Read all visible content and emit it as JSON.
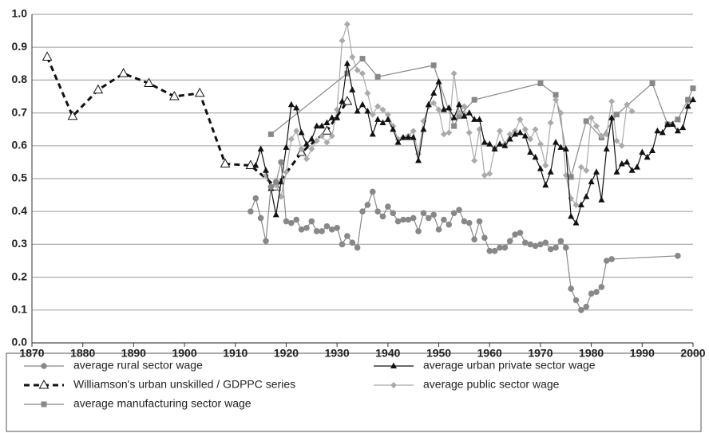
{
  "chart_data": {
    "type": "line",
    "xlim": [
      1870,
      2000
    ],
    "xticks": [
      1870,
      1880,
      1890,
      1900,
      1910,
      1920,
      1930,
      1940,
      1950,
      1960,
      1970,
      1980,
      1990,
      2000
    ],
    "ylim": [
      0,
      1
    ],
    "yticks": [
      {
        "value": 0,
        "label": "0.0"
      },
      0.1,
      0.2,
      0.3,
      0.4,
      0.5,
      0.6,
      0.7,
      0.8,
      0.9,
      {
        "value": 1,
        "label": "1.0"
      }
    ],
    "grid": true,
    "legend": "bottom",
    "series": [
      {
        "name": "average rural sector wage",
        "color": "#888888",
        "marker": "circle",
        "x": [
          1913,
          1914,
          1915,
          1916,
          1917,
          1918,
          1919,
          1920,
          1921,
          1922,
          1923,
          1924,
          1925,
          1926,
          1927,
          1928,
          1929,
          1930,
          1931,
          1932,
          1933,
          1934,
          1935,
          1936,
          1937,
          1938,
          1939,
          1940,
          1941,
          1942,
          1943,
          1944,
          1945,
          1946,
          1947,
          1948,
          1949,
          1950,
          1951,
          1952,
          1953,
          1954,
          1955,
          1956,
          1957,
          1958,
          1959,
          1960,
          1961,
          1962,
          1963,
          1964,
          1965,
          1966,
          1967,
          1968,
          1969,
          1970,
          1971,
          1972,
          1973,
          1974,
          1975,
          1976,
          1977,
          1978,
          1979,
          1980,
          1981,
          1982,
          1983,
          1984,
          1997
        ],
        "values": [
          0.4,
          0.44,
          0.38,
          0.31,
          0.475,
          0.49,
          0.55,
          0.37,
          0.365,
          0.375,
          0.345,
          0.35,
          0.37,
          0.34,
          0.34,
          0.355,
          0.345,
          0.35,
          0.3,
          0.325,
          0.305,
          0.29,
          0.4,
          0.42,
          0.46,
          0.4,
          0.385,
          0.415,
          0.395,
          0.37,
          0.375,
          0.375,
          0.38,
          0.34,
          0.395,
          0.38,
          0.39,
          0.345,
          0.375,
          0.36,
          0.395,
          0.405,
          0.37,
          0.365,
          0.315,
          0.37,
          0.32,
          0.28,
          0.28,
          0.29,
          0.29,
          0.31,
          0.33,
          0.335,
          0.305,
          0.3,
          0.295,
          0.3,
          0.305,
          0.285,
          0.29,
          0.31,
          0.29,
          0.165,
          0.13,
          0.1,
          0.11,
          0.15,
          0.155,
          0.17,
          0.25,
          0.255,
          0.265
        ]
      },
      {
        "name": "average urban private sector wage",
        "color": "#111111",
        "marker": "triangle",
        "x": [
          1914,
          1915,
          1916,
          1917,
          1918,
          1919,
          1920,
          1921,
          1922,
          1923,
          1924,
          1925,
          1926,
          1927,
          1928,
          1929,
          1930,
          1931,
          1932,
          1933,
          1934,
          1935,
          1936,
          1937,
          1938,
          1939,
          1940,
          1941,
          1942,
          1943,
          1944,
          1945,
          1946,
          1947,
          1948,
          1949,
          1950,
          1951,
          1952,
          1953,
          1954,
          1955,
          1956,
          1957,
          1958,
          1959,
          1960,
          1961,
          1962,
          1963,
          1964,
          1965,
          1966,
          1967,
          1968,
          1969,
          1970,
          1971,
          1972,
          1973,
          1974,
          1975,
          1976,
          1977,
          1978,
          1979,
          1980,
          1981,
          1982,
          1983,
          1984,
          1985,
          1986,
          1987,
          1988,
          1989,
          1990,
          1991,
          1992,
          1993,
          1994,
          1995,
          1996,
          1997,
          1998,
          1999,
          2000
        ],
        "values": [
          0.54,
          0.59,
          0.525,
          0.47,
          0.39,
          0.49,
          0.595,
          0.725,
          0.715,
          0.64,
          0.605,
          0.62,
          0.66,
          0.66,
          0.67,
          0.685,
          0.685,
          0.735,
          0.85,
          0.77,
          0.705,
          0.725,
          0.705,
          0.635,
          0.68,
          0.67,
          0.68,
          0.65,
          0.61,
          0.625,
          0.625,
          0.625,
          0.555,
          0.65,
          0.725,
          0.76,
          0.795,
          0.71,
          0.715,
          0.685,
          0.725,
          0.69,
          0.7,
          0.68,
          0.68,
          0.61,
          0.605,
          0.59,
          0.605,
          0.6,
          0.62,
          0.635,
          0.64,
          0.63,
          0.58,
          0.565,
          0.53,
          0.48,
          0.52,
          0.61,
          0.595,
          0.59,
          0.385,
          0.365,
          0.42,
          0.445,
          0.49,
          0.52,
          0.435,
          0.59,
          0.685,
          0.52,
          0.545,
          0.55,
          0.525,
          0.535,
          0.58,
          0.565,
          0.585,
          0.645,
          0.64,
          0.665,
          0.665,
          0.645,
          0.655,
          0.72,
          0.74
        ]
      },
      {
        "name": "Williamson's urban unskilled / GDPPC series",
        "color": "#111111",
        "marker": "open-triangle",
        "dashed": true,
        "x": [
          1873,
          1878,
          1883,
          1888,
          1893,
          1898,
          1903,
          1908,
          1913,
          1918,
          1923,
          1928,
          1932
        ],
        "values": [
          0.87,
          0.69,
          0.77,
          0.82,
          0.79,
          0.75,
          0.76,
          0.545,
          0.54,
          0.475,
          0.58,
          0.645,
          0.735
        ]
      },
      {
        "name": "average public sector wage",
        "color": "#aaaaaa",
        "marker": "diamond",
        "x": [
          1916,
          1917,
          1918,
          1919,
          1920,
          1921,
          1922,
          1923,
          1924,
          1925,
          1926,
          1927,
          1928,
          1929,
          1930,
          1931,
          1932,
          1933,
          1934,
          1935,
          1936,
          1937,
          1938,
          1939,
          1940,
          1941,
          1942,
          1943,
          1944,
          1945,
          1946,
          1947,
          1948,
          1949,
          1950,
          1951,
          1952,
          1953,
          1954,
          1955,
          1956,
          1957,
          1958,
          1959,
          1960,
          1961,
          1962,
          1963,
          1964,
          1965,
          1966,
          1967,
          1968,
          1969,
          1970,
          1971,
          1972,
          1973,
          1974,
          1975,
          1976,
          1977,
          1978,
          1979,
          1980,
          1981,
          1982,
          1983,
          1984,
          1985,
          1986,
          1987,
          1988
        ],
        "values": [
          0.51,
          0.475,
          0.48,
          0.445,
          0.52,
          0.62,
          0.645,
          0.59,
          0.56,
          0.59,
          0.615,
          0.63,
          0.61,
          0.63,
          0.71,
          0.92,
          0.97,
          0.87,
          0.83,
          0.82,
          0.76,
          0.695,
          0.72,
          0.71,
          0.695,
          0.66,
          0.62,
          0.625,
          0.63,
          0.645,
          0.575,
          0.675,
          0.72,
          0.73,
          0.71,
          0.635,
          0.64,
          0.82,
          0.7,
          0.72,
          0.64,
          0.555,
          0.65,
          0.51,
          0.515,
          0.59,
          0.645,
          0.605,
          0.635,
          0.645,
          0.68,
          0.65,
          0.62,
          0.65,
          0.605,
          0.54,
          0.67,
          0.74,
          0.7,
          0.51,
          0.44,
          0.42,
          0.535,
          0.525,
          0.685,
          0.66,
          0.63,
          0.635,
          0.735,
          0.615,
          0.6,
          0.725,
          0.705
        ]
      },
      {
        "name": "average manufacturing sector wage",
        "color": "#888888",
        "marker": "square",
        "x": [
          1917,
          1932,
          1935,
          1938,
          1949,
          1953,
          1954,
          1957,
          1970,
          1973,
          1976,
          1979,
          1982,
          1985,
          1992,
          1995,
          1997,
          1999,
          2000
        ],
        "values": [
          0.635,
          0.82,
          0.865,
          0.81,
          0.845,
          0.66,
          0.69,
          0.74,
          0.79,
          0.755,
          0.505,
          0.675,
          0.625,
          0.695,
          0.79,
          0.665,
          0.68,
          0.74,
          0.775
        ]
      }
    ]
  }
}
